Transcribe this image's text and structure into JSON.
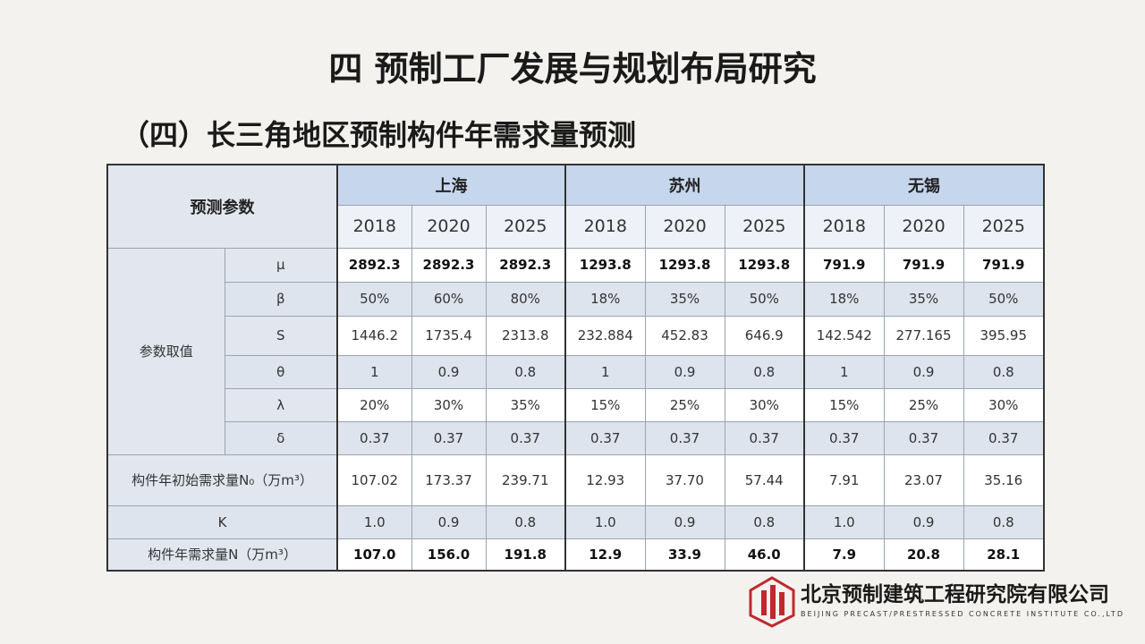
{
  "header": {
    "title": "四  预制工厂发展与规划布局研究",
    "subtitle": "（四）长三角地区预制构件年需求量预测"
  },
  "table": {
    "param_header": "预测参数",
    "cities": [
      "上海",
      "苏州",
      "无锡"
    ],
    "years": [
      "2018",
      "2020",
      "2025",
      "2018",
      "2020",
      "2025",
      "2018",
      "2020",
      "2025"
    ],
    "group_label": "参数取值",
    "group_rows": [
      {
        "label": "μ",
        "cells": [
          "2892.3",
          "2892.3",
          "2892.3",
          "1293.8",
          "1293.8",
          "1293.8",
          "791.9",
          "791.9",
          "791.9"
        ]
      },
      {
        "label": "β",
        "cells": [
          "50%",
          "60%",
          "80%",
          "18%",
          "35%",
          "50%",
          "18%",
          "35%",
          "50%"
        ]
      },
      {
        "label": "S",
        "cells": [
          "1446.2",
          "1735.4",
          "2313.8",
          "232.884",
          "452.83",
          "646.9",
          "142.542",
          "277.165",
          "395.95"
        ]
      },
      {
        "label": "θ",
        "cells": [
          "1",
          "0.9",
          "0.8",
          "1",
          "0.9",
          "0.8",
          "1",
          "0.9",
          "0.8"
        ]
      },
      {
        "label": "λ",
        "cells": [
          "20%",
          "30%",
          "35%",
          "15%",
          "25%",
          "30%",
          "15%",
          "25%",
          "30%"
        ]
      },
      {
        "label": "δ",
        "cells": [
          "0.37",
          "0.37",
          "0.37",
          "0.37",
          "0.37",
          "0.37",
          "0.37",
          "0.37",
          "0.37"
        ]
      }
    ],
    "rows": [
      {
        "label": "构件年初始需求量N₀（万m³）",
        "cells": [
          "107.02",
          "173.37",
          "239.71",
          "12.93",
          "37.70",
          "57.44",
          "7.91",
          "23.07",
          "35.16"
        ]
      },
      {
        "label": "K",
        "cells": [
          "1.0",
          "0.9",
          "0.8",
          "1.0",
          "0.9",
          "0.8",
          "1.0",
          "0.9",
          "0.8"
        ]
      },
      {
        "label": "构件年需求量N（万m³）",
        "cells": [
          "107.0",
          "156.0",
          "191.8",
          "12.9",
          "33.9",
          "46.0",
          "7.9",
          "20.8",
          "28.1"
        ]
      }
    ]
  },
  "footer": {
    "company": "北京预制建筑工程研究院有限公司",
    "company_en": "BEIJING PRECAST/PRESTRESSED CONCRETE INSTITUTE CO.,LTD"
  }
}
